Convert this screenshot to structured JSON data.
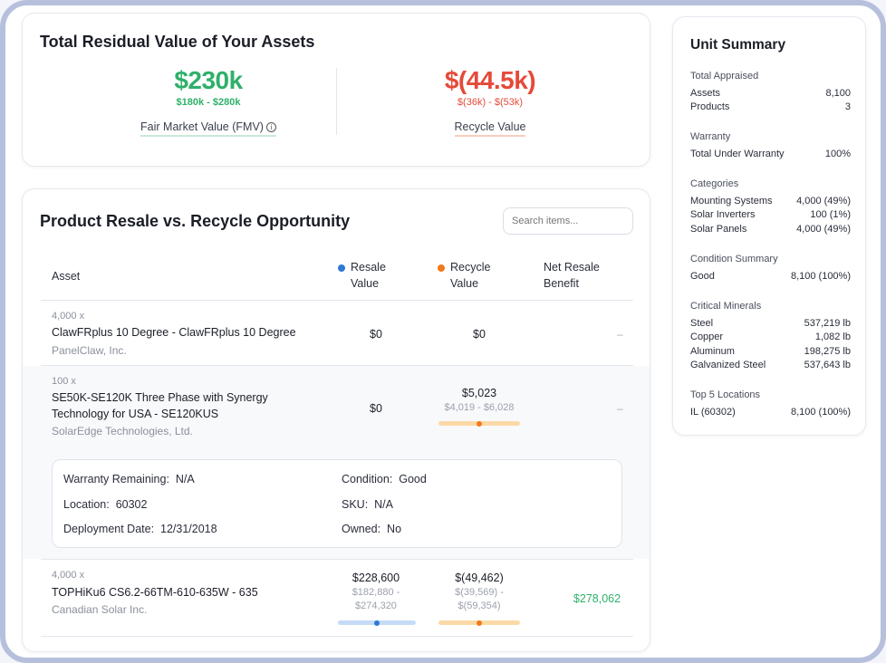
{
  "residual": {
    "title": "Total Residual Value of Your Assets",
    "fmv": {
      "value": "$230k",
      "range": "$180k - $280k",
      "label": "Fair Market Value (FMV)"
    },
    "recycle": {
      "value": "$(44.5k)",
      "range": "$(36k) - $(53k)",
      "label": "Recycle Value"
    }
  },
  "opportunity": {
    "title": "Product Resale vs. Recycle Opportunity",
    "search_placeholder": "Search items...",
    "columns": {
      "asset": "Asset",
      "resale_1": "Resale",
      "resale_2": "Value",
      "recycle_1": "Recycle",
      "recycle_2": "Value",
      "net_1": "Net Resale",
      "net_2": "Benefit"
    },
    "rows": [
      {
        "qty": "4,000 x",
        "name": "ClawFRplus 10 Degree - ClawFRplus 10 Degree",
        "manufacturer": "PanelClaw, Inc.",
        "resale": "$0",
        "recycle": "$0",
        "net": "–"
      },
      {
        "qty": "100 x",
        "name_1": "SE50K-SE120K Three Phase with Synergy",
        "name_2": "Technology for USA - SE120KUS",
        "manufacturer": "SolarEdge Technologies, Ltd.",
        "resale": "$0",
        "recycle": "$5,023",
        "recycle_range": "$4,019 - $6,028",
        "recycle_position": 0.5,
        "net": "–"
      },
      {
        "qty": "4,000 x",
        "name": "TOPHiKu6 CS6.2-66TM-610-635W - 635",
        "manufacturer": "Canadian Solar Inc.",
        "resale": "$228,600",
        "resale_range_1": "$182,880 -",
        "resale_range_2": "$274,320",
        "resale_position": 0.5,
        "recycle": "$(49,462)",
        "recycle_range_1": "$(39,569) -",
        "recycle_range_2": "$(59,354)",
        "recycle_position": 0.5,
        "net": "$278,062"
      }
    ],
    "detail": {
      "warranty_label": "Warranty Remaining:",
      "warranty_value": "N/A",
      "condition_label": "Condition:",
      "condition_value": "Good",
      "location_label": "Location:",
      "location_value": "60302",
      "sku_label": "SKU:",
      "sku_value": "N/A",
      "deploy_label": "Deployment Date:",
      "deploy_value": "12/31/2018",
      "owned_label": "Owned:",
      "owned_value": "No"
    }
  },
  "summary": {
    "title": "Unit Summary",
    "sections": [
      {
        "heading": "Total Appraised",
        "items": [
          {
            "k": "Assets",
            "v": "8,100"
          },
          {
            "k": "Products",
            "v": "3"
          }
        ]
      },
      {
        "heading": "Warranty",
        "items": [
          {
            "k": "Total Under Warranty",
            "v": "100%"
          }
        ]
      },
      {
        "heading": "Categories",
        "items": [
          {
            "k": "Mounting Systems",
            "v": "4,000 (49%)"
          },
          {
            "k": "Solar Inverters",
            "v": "100 (1%)"
          },
          {
            "k": "Solar Panels",
            "v": "4,000 (49%)"
          }
        ]
      },
      {
        "heading": "Condition Summary",
        "items": [
          {
            "k": "Good",
            "v": "8,100 (100%)"
          }
        ]
      },
      {
        "heading": "Critical Minerals",
        "items": [
          {
            "k": "Steel",
            "v": "537,219 lb"
          },
          {
            "k": "Copper",
            "v": "1,082 lb"
          },
          {
            "k": "Aluminum",
            "v": "198,275 lb"
          },
          {
            "k": "Galvanized Steel",
            "v": "537,643 lb"
          }
        ]
      },
      {
        "heading": "Top 5 Locations",
        "items": [
          {
            "k": "IL (60302)",
            "v": "8,100 (100%)"
          }
        ]
      }
    ]
  },
  "colors": {
    "positive": "#2fb06a",
    "negative": "#e54a3a",
    "resale_dot": "#2f79d4",
    "recycle_dot": "#f07a1b"
  }
}
